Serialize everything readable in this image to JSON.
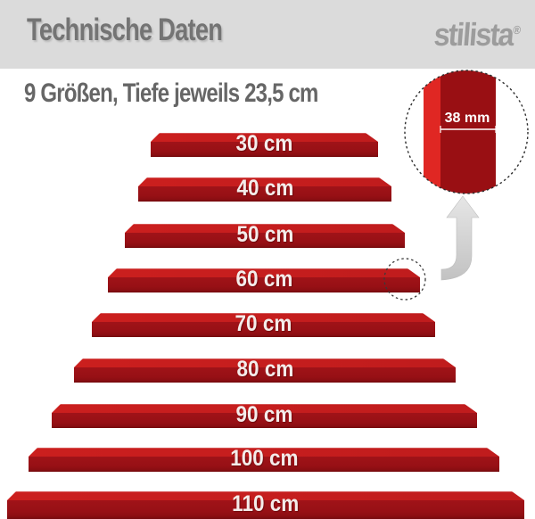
{
  "header": {
    "title": "Technische Daten",
    "logo_text": "stilista",
    "logo_mark": "®"
  },
  "subtitle": "9 Größen, Tiefe jeweils 23,5 cm",
  "shelves": {
    "labels": [
      "30 cm",
      "40 cm",
      "50 cm",
      "60 cm",
      "70 cm",
      "80 cm",
      "90 cm",
      "100 cm",
      "110 cm"
    ]
  },
  "detail": {
    "measurement": "38 mm"
  },
  "colors": {
    "header_bg": "#dbdbdb",
    "title_gray": "#747474",
    "logo_gray": "#9c9c9c",
    "shelf_top_face": "#cb1f1e",
    "shelf_front_face": "#a01318",
    "detail_bright_red": "#e02723",
    "detail_dark_red": "#990f13",
    "arrow_gray": "#d0d0d0"
  }
}
